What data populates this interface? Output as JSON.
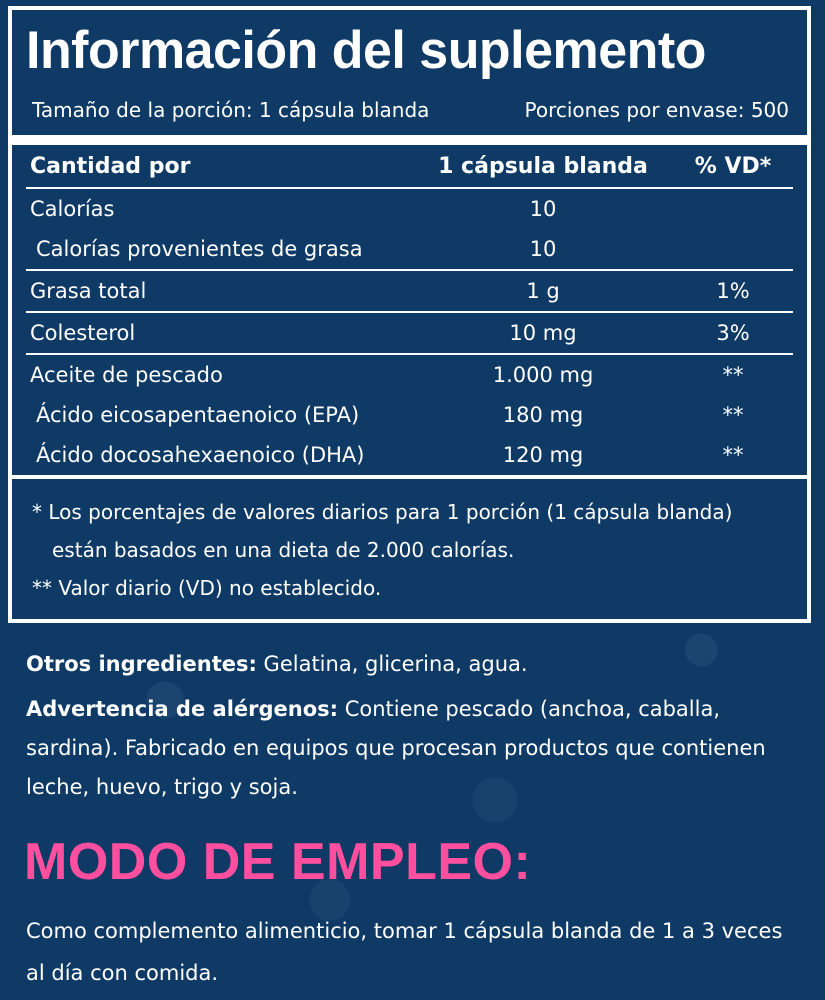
{
  "facts": {
    "title": "Información del suplemento",
    "serving_size": "Tamaño de la porción: 1 cápsula blanda",
    "servings_per_container": "Porciones por envase: 500",
    "header": {
      "amount_per": "Cantidad por",
      "per_unit": "1 cápsula blanda",
      "dv": "% VD*"
    },
    "rows": [
      {
        "name": "Calorías",
        "amount": "10",
        "dv": ""
      },
      {
        "name": "Calorías provenientes de grasa",
        "amount": "10",
        "dv": ""
      },
      {
        "name": "Grasa total",
        "amount": "1 g",
        "dv": "1%"
      },
      {
        "name": "Colesterol",
        "amount": "10 mg",
        "dv": "3%"
      },
      {
        "name": "Aceite de pescado",
        "amount": "1.000 mg",
        "dv": "**"
      },
      {
        "name": "Ácido eicosapentaenoico (EPA)",
        "amount": "180 mg",
        "dv": "**"
      },
      {
        "name": "Ácido docosahexaenoico (DHA)",
        "amount": "120 mg",
        "dv": "**"
      }
    ],
    "footnote_1a": "* Los porcentajes de valores diarios para 1 porción (1 cápsula blanda)",
    "footnote_1b": "están basados en una dieta de 2.000 calorías.",
    "footnote_2": "** Valor diario (VD) no establecido."
  },
  "other_ingredients": {
    "label": "Otros ingredientes:",
    "text": " Gelatina, glicerina, agua."
  },
  "allergen_warning": {
    "label": "Advertencia de alérgenos:",
    "text": " Contiene pescado (anchoa, caballa, sardina). Fabricado en equipos que procesan productos que contienen leche, huevo, trigo y soja."
  },
  "usage": {
    "title": "MODO DE EMPLEO:",
    "text": "Como complemento alimenticio, tomar 1 cápsula blanda de 1 a 3 veces al día con comida."
  },
  "colors": {
    "background": "#0f3a66",
    "accent": "#ff4f9e",
    "text": "#ffffff"
  }
}
